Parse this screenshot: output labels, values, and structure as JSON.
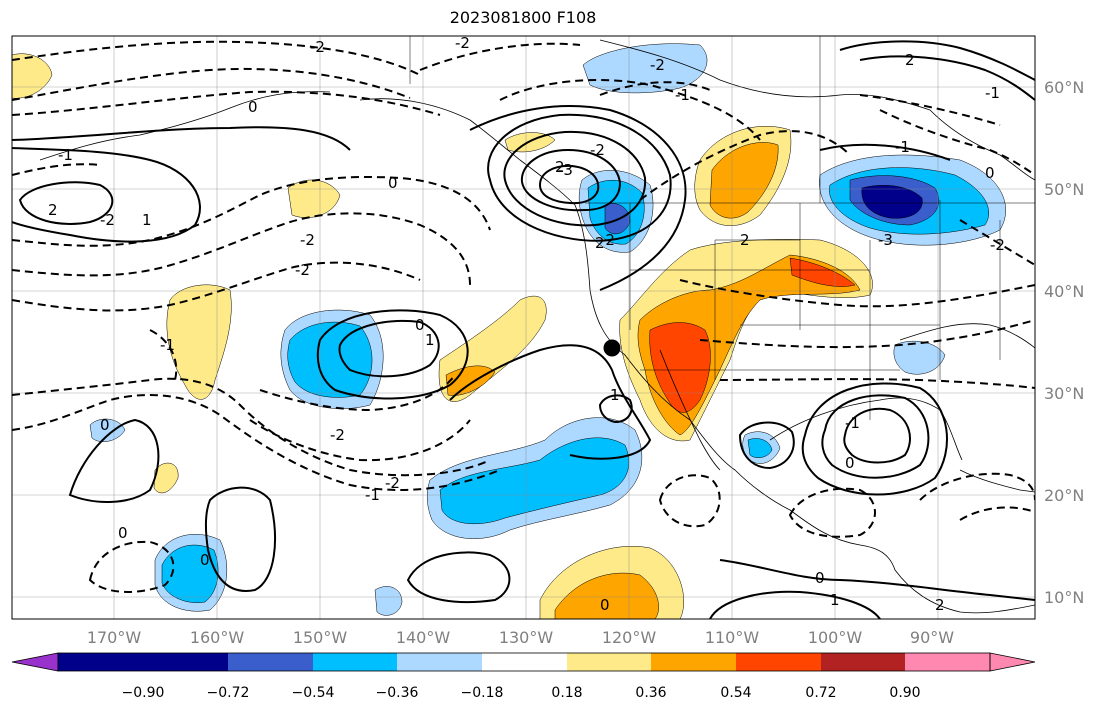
{
  "title": "2023081800 F108",
  "lon_labels": [
    "170°W",
    "160°W",
    "150°W",
    "140°W",
    "130°W",
    "120°W",
    "110°W",
    "100°W",
    "90°W"
  ],
  "lat_labels": [
    "60°N",
    "50°N",
    "40°N",
    "30°N",
    "20°N",
    "10°N"
  ],
  "colorbar": {
    "ticks": [
      "−0.90",
      "−0.72",
      "−0.54",
      "−0.36",
      "−0.18",
      "0.18",
      "0.36",
      "0.54",
      "0.72",
      "0.90"
    ],
    "colors": [
      "#9932cc",
      "#00008b",
      "#3a5fcd",
      "#00bfff",
      "#add8ff",
      "#ffffff",
      "#ffea8a",
      "#ffa500",
      "#ff4500",
      "#b22222",
      "#ff88b0"
    ]
  },
  "contour_labels": [
    "-2",
    "-2",
    "0",
    "-1",
    "2",
    "-2",
    "1",
    "0",
    "-2",
    "-2",
    "-2",
    "2",
    "-3",
    "-2",
    "-1",
    "-2",
    "0",
    "2",
    "2",
    "-3",
    "-2",
    "-1",
    "0",
    "-1",
    "1",
    "0",
    "-1",
    "1",
    "-2",
    "-1",
    "0",
    "0",
    "0",
    "0",
    "1",
    "2",
    "-1",
    "-2",
    "0",
    "2"
  ],
  "marker": "location-marker"
}
